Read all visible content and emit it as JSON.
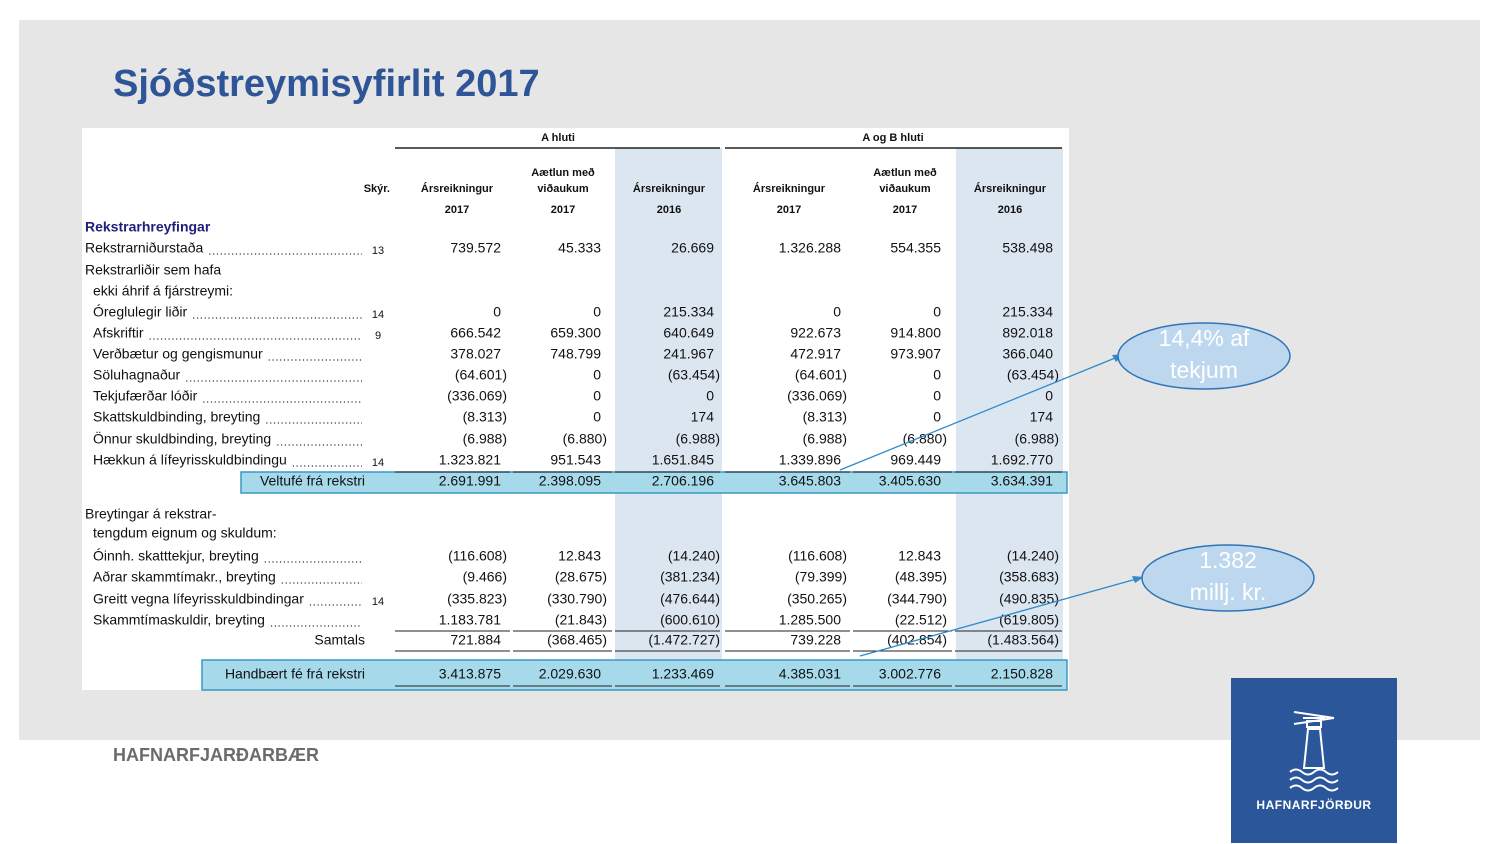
{
  "title": "Sjóðstreymisyfirlit 2017",
  "table": {
    "groups": [
      "A hluti",
      "A og B hluti"
    ],
    "note_header": "Skýr.",
    "columns": [
      {
        "name": [
          "Ársreikningur"
        ],
        "year": "2017"
      },
      {
        "name": [
          "Aætlun með",
          "viðaukum"
        ],
        "year": "2017"
      },
      {
        "name": [
          "Ársreikningur"
        ],
        "year": "2016"
      },
      {
        "name": [
          "Ársreikningur"
        ],
        "year": "2017"
      },
      {
        "name": [
          "Aætlun með",
          "viðaukum"
        ],
        "year": "2017"
      },
      {
        "name": [
          "Ársreikningur"
        ],
        "year": "2016"
      }
    ],
    "section": "Rekstrarhreyfingar",
    "rows": [
      {
        "label": "Rekstrarniðurstaða",
        "note": "13",
        "values": [
          "739.572",
          "45.333",
          "26.669",
          "1.326.288",
          "554.355",
          "538.498"
        ]
      },
      {
        "label": "Rekstrarliðir sem hafa"
      },
      {
        "label": "ekki áhrif á fjárstreymi:"
      },
      {
        "label": "Óreglulegir liðir",
        "note": "14",
        "values": [
          "0",
          "0",
          "215.334",
          "0",
          "0",
          "215.334"
        ]
      },
      {
        "label": "Afskriftir",
        "note": "9",
        "values": [
          "666.542",
          "659.300",
          "640.649",
          "922.673",
          "914.800",
          "892.018"
        ]
      },
      {
        "label": "Verðbætur og gengismunur",
        "values": [
          "378.027",
          "748.799",
          "241.967",
          "472.917",
          "973.907",
          "366.040"
        ]
      },
      {
        "label": "Söluhagnaður",
        "values": [
          "(64.601)",
          "0",
          "(63.454)",
          "(64.601)",
          "0",
          "(63.454)"
        ]
      },
      {
        "label": "Tekjufærðar lóðir",
        "values": [
          "(336.069)",
          "0",
          "0",
          "(336.069)",
          "0",
          "0"
        ]
      },
      {
        "label": "Skattskuldbinding, breyting",
        "values": [
          "(8.313)",
          "0",
          "174",
          "(8.313)",
          "0",
          "174"
        ]
      },
      {
        "label": "Önnur skuldbinding, breyting",
        "values": [
          "(6.988)",
          "(6.880)",
          "(6.988)",
          "(6.988)",
          "(6.880)",
          "(6.988)"
        ]
      },
      {
        "label": "Hækkun á lífeyrisskuldbindingu",
        "note": "14",
        "values": [
          "1.323.821",
          "951.543",
          "1.651.845",
          "1.339.896",
          "969.449",
          "1.692.770"
        ]
      },
      {
        "label": "Veltufé frá rekstri",
        "values": [
          "2.691.991",
          "2.398.095",
          "2.706.196",
          "3.645.803",
          "3.405.630",
          "3.634.391"
        ]
      },
      {
        "label": "Breytingar á rekstrar-"
      },
      {
        "label": "tengdum eignum og skuldum:"
      },
      {
        "label": "Óinnh. skatttekjur, breyting",
        "values": [
          "(116.608)",
          "12.843",
          "(14.240)",
          "(116.608)",
          "12.843",
          "(14.240)"
        ]
      },
      {
        "label": "Aðrar skammtímakr., breyting",
        "values": [
          "(9.466)",
          "(28.675)",
          "(381.234)",
          "(79.399)",
          "(48.395)",
          "(358.683)"
        ]
      },
      {
        "label": "Greitt vegna lífeyrisskuldbindingar",
        "note": "14",
        "values": [
          "(335.823)",
          "(330.790)",
          "(476.644)",
          "(350.265)",
          "(344.790)",
          "(490.835)"
        ]
      },
      {
        "label": "Skammtímaskuldir, breyting",
        "values": [
          "1.183.781",
          "(21.843)",
          "(600.610)",
          "1.285.500",
          "(22.512)",
          "(619.805)"
        ]
      },
      {
        "label": "Samtals",
        "values": [
          "721.884",
          "(368.465)",
          "(1.472.727)",
          "739.228",
          "(402.854)",
          "(1.483.564)"
        ]
      },
      {
        "label": "Handbært fé frá rekstri",
        "values": [
          "3.413.875",
          "2.029.630",
          "1.233.469",
          "4.385.031",
          "3.002.776",
          "2.150.828"
        ]
      }
    ]
  },
  "callouts": [
    {
      "text": [
        "14,4% af",
        "tekjum"
      ]
    },
    {
      "text": [
        "1.382",
        "millj. kr."
      ]
    }
  ],
  "footer": "HAFNARFJARÐARBÆR",
  "logo": "HAFNARFJÖRÐUR"
}
